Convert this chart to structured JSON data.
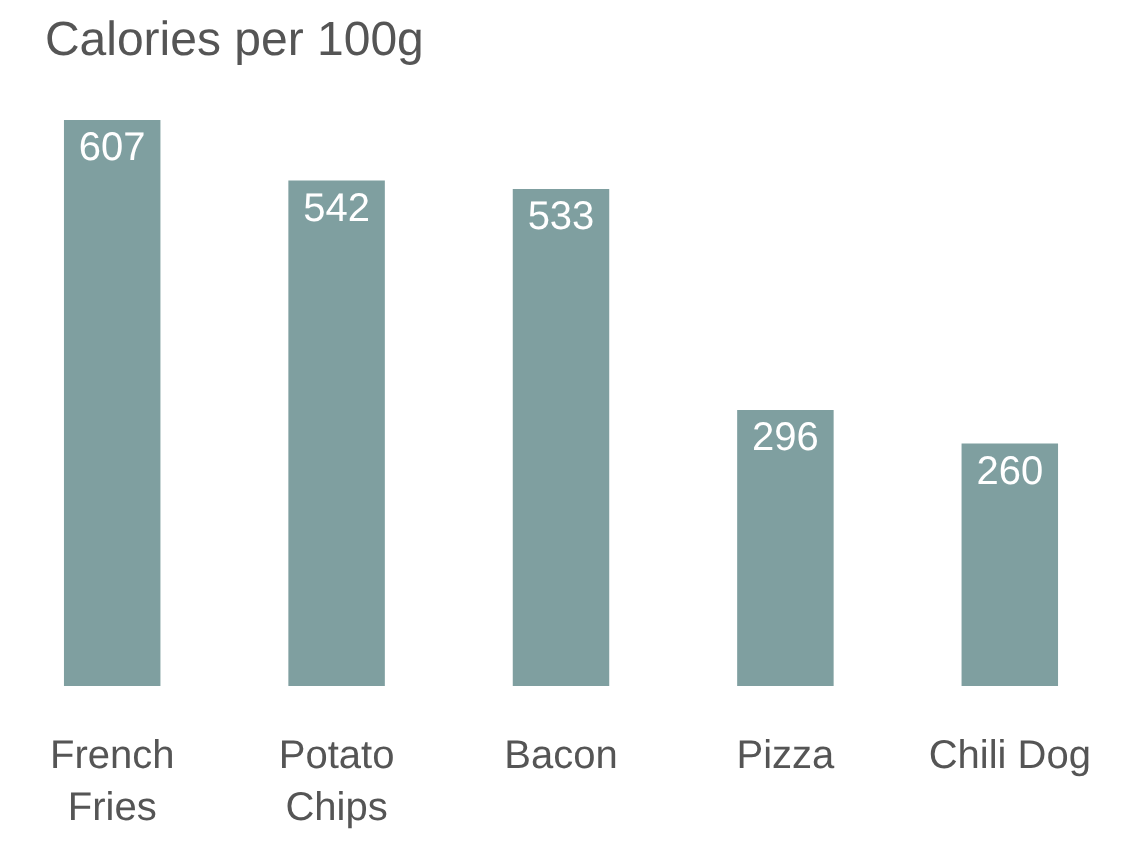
{
  "chart_data": {
    "type": "bar",
    "title": "Calories per 100g",
    "categories": [
      "French Fries",
      "Potato Chips",
      "Bacon",
      "Pizza",
      "Chili Dog"
    ],
    "values": [
      607,
      542,
      533,
      296,
      260
    ],
    "color": "#7f9fa0",
    "data_labels": true
  }
}
